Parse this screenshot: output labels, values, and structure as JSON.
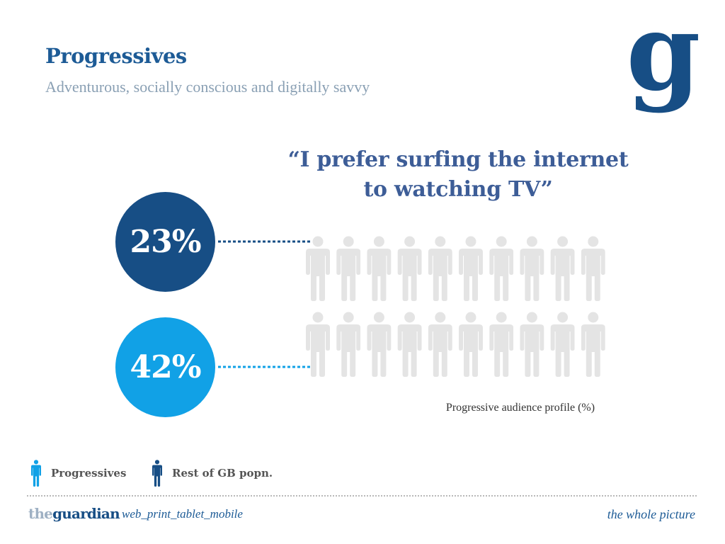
{
  "header": {
    "title": "Progressives",
    "subtitle": "Adventurous, socially conscious and digitally savvy",
    "logo_letter": "g"
  },
  "chart_data": {
    "type": "pictograph",
    "title": "“I prefer surfing the internet to watching TV”",
    "title_lines": [
      "“I prefer surfing the internet",
      "to watching TV”"
    ],
    "caption": "Progressive audience profile (%)",
    "icons_per_row": 10,
    "series": [
      {
        "name": "Rest of GB popn.",
        "value": 23,
        "label": "23%",
        "color": "#174e85"
      },
      {
        "name": "Progressives",
        "value": 42,
        "label": "42%",
        "color": "#11a1e6"
      }
    ],
    "empty_color": "#e4e4e4"
  },
  "legend": [
    {
      "label": "Progressives",
      "color": "#11a1e6"
    },
    {
      "label": "Rest of GB popn.",
      "color": "#174e85"
    }
  ],
  "footer": {
    "brand_prefix": "the",
    "brand_name": "guardian",
    "brand_tagline": "web_print_tablet_mobile",
    "slogan": "the whole picture"
  }
}
